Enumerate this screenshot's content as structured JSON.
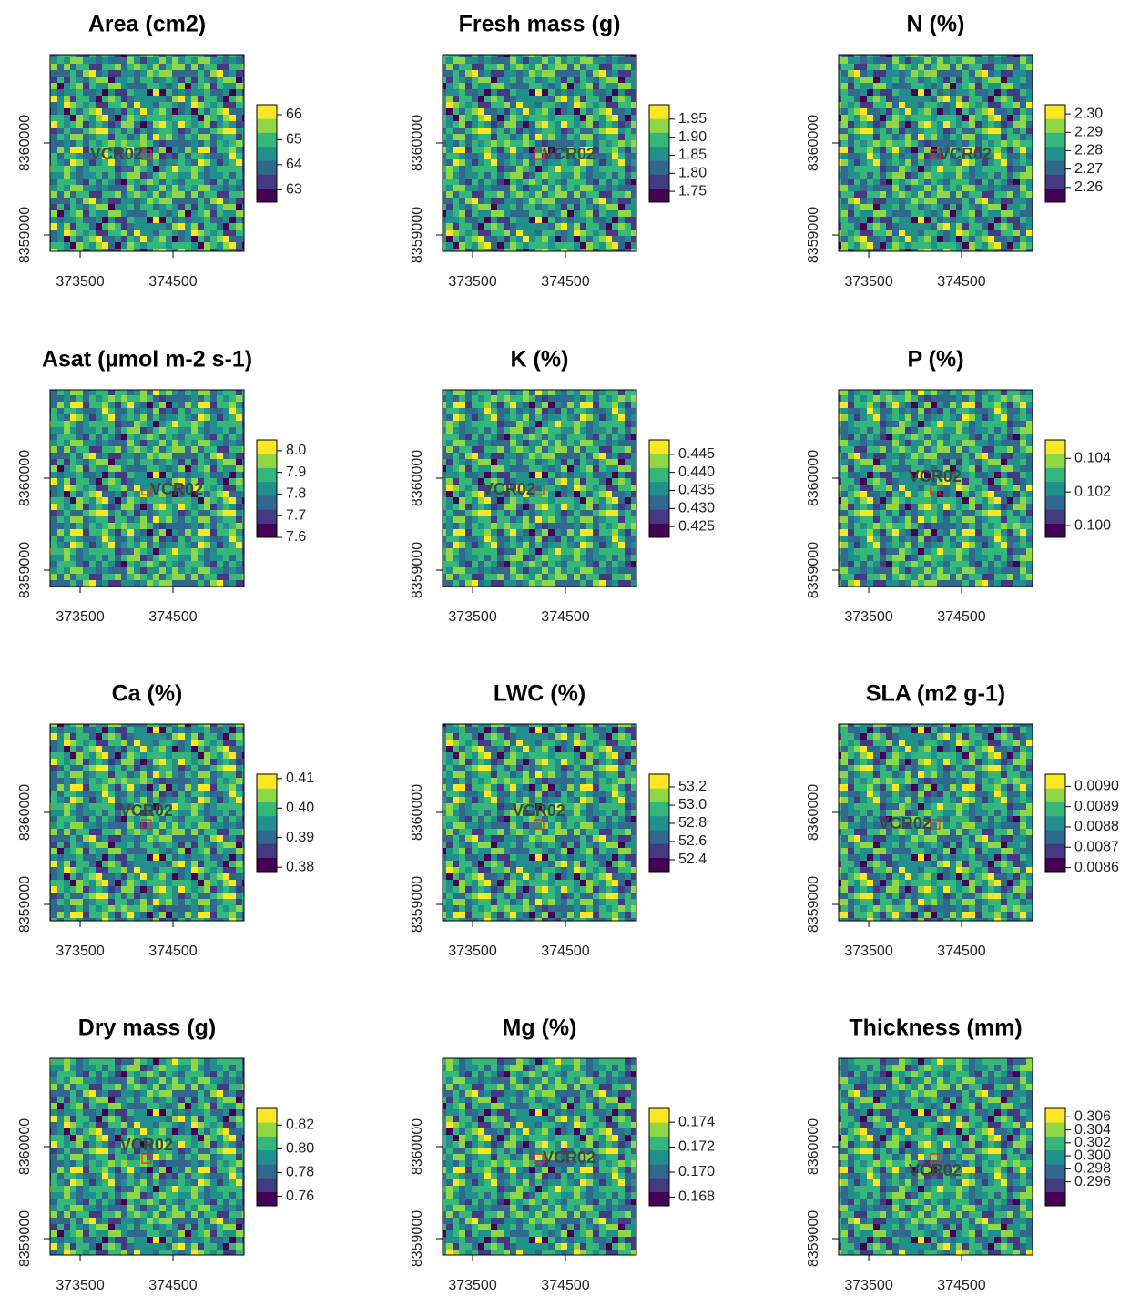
{
  "palette": [
    "#440154",
    "#443a83",
    "#31688e",
    "#21908c",
    "#35b779",
    "#8fd744",
    "#fde725"
  ],
  "chart_data": [
    {
      "type": "raster",
      "title": "Area (cm2)",
      "xlim": [
        373176,
        375265
      ],
      "ylim": [
        8358822,
        8360960
      ],
      "xticks": [
        373500,
        374500
      ],
      "yticks": [
        8359000,
        8360000
      ],
      "zlim": [
        62.5,
        66.4
      ],
      "zticks": [
        63,
        64,
        65,
        66
      ],
      "annotation": {
        "text": "VCR02",
        "x": 374215,
        "y": 8359870,
        "position": "left"
      }
    },
    {
      "type": "raster",
      "title": "Fresh mass (g)",
      "xlim": [
        373176,
        375265
      ],
      "ylim": [
        8358822,
        8360960
      ],
      "xticks": [
        373500,
        374500
      ],
      "yticks": [
        8359000,
        8360000
      ],
      "zlim": [
        1.72,
        1.99
      ],
      "zticks": [
        1.75,
        {
          "value": 1.8,
          "label": "1.80"
        },
        1.85,
        {
          "value": 1.9,
          "label": "1.90"
        },
        1.95
      ],
      "annotation": {
        "text": "VCR02",
        "x": 374215,
        "y": 8359870,
        "position": "right"
      }
    },
    {
      "type": "raster",
      "title": "N (%)",
      "xlim": [
        373176,
        375265
      ],
      "ylim": [
        8358822,
        8360960
      ],
      "xticks": [
        373500,
        374500
      ],
      "yticks": [
        8359000,
        8360000
      ],
      "zlim": [
        2.252,
        2.305
      ],
      "zticks": [
        2.26,
        2.27,
        2.28,
        2.29,
        {
          "value": 2.3,
          "label": "2.30"
        }
      ],
      "annotation": {
        "text": "VCR02",
        "x": 374215,
        "y": 8359870,
        "position": "right"
      }
    },
    {
      "type": "raster",
      "title": "Asat (µmol m-2 s-1)",
      "xlim": [
        373176,
        375265
      ],
      "ylim": [
        8358822,
        8360960
      ],
      "xticks": [
        373500,
        374500
      ],
      "yticks": [
        8359000,
        8360000
      ],
      "zlim": [
        7.6,
        8.05
      ],
      "zticks": [
        7.6,
        7.7,
        7.8,
        7.9,
        {
          "value": 8,
          "label": "8.0"
        }
      ],
      "annotation": {
        "text": "VCR02",
        "x": 374215,
        "y": 8359870,
        "position": "right"
      }
    },
    {
      "type": "raster",
      "title": "K (%)",
      "xlim": [
        373176,
        375265
      ],
      "ylim": [
        8358822,
        8360960
      ],
      "xticks": [
        373500,
        374500
      ],
      "yticks": [
        8359000,
        8360000
      ],
      "zlim": [
        0.422,
        0.449
      ],
      "zticks": [
        0.425,
        {
          "value": 0.43,
          "label": "0.430"
        },
        0.435,
        {
          "value": 0.44,
          "label": "0.440"
        },
        0.445
      ],
      "annotation": {
        "text": "VCR02",
        "x": 374215,
        "y": 8359870,
        "position": "left"
      }
    },
    {
      "type": "raster",
      "title": "P (%)",
      "xlim": [
        373176,
        375265
      ],
      "ylim": [
        8358822,
        8360960
      ],
      "xticks": [
        373500,
        374500
      ],
      "yticks": [
        8359000,
        8360000
      ],
      "zlim": [
        0.0993,
        0.1051
      ],
      "zticks": [
        {
          "value": 0.1,
          "label": "0.100"
        },
        0.102,
        0.104
      ],
      "annotation": {
        "text": "VCR02",
        "x": 374215,
        "y": 8359870,
        "position": "above"
      }
    },
    {
      "type": "raster",
      "title": "Ca (%)",
      "xlim": [
        373176,
        375265
      ],
      "ylim": [
        8358822,
        8360960
      ],
      "xticks": [
        373500,
        374500
      ],
      "yticks": [
        8359000,
        8360000
      ],
      "zlim": [
        0.3785,
        0.4115
      ],
      "zticks": [
        0.38,
        0.39,
        {
          "value": 0.4,
          "label": "0.40"
        },
        0.41
      ],
      "annotation": {
        "text": "VCR02",
        "x": 374215,
        "y": 8359870,
        "position": "above"
      }
    },
    {
      "type": "raster",
      "title": "LWC (%)",
      "xlim": [
        373176,
        375265
      ],
      "ylim": [
        8358822,
        8360960
      ],
      "xticks": [
        373500,
        374500
      ],
      "yticks": [
        8359000,
        8360000
      ],
      "zlim": [
        52.27,
        53.34
      ],
      "zticks": [
        52.4,
        52.6,
        52.8,
        {
          "value": 53,
          "label": "53.0"
        },
        53.2
      ],
      "annotation": {
        "text": "VCR02",
        "x": 374215,
        "y": 8359870,
        "position": "above"
      }
    },
    {
      "type": "raster",
      "title": "SLA (m2 g-1)",
      "xlim": [
        373176,
        375265
      ],
      "ylim": [
        8358822,
        8360960
      ],
      "xticks": [
        373500,
        374500
      ],
      "yticks": [
        8359000,
        8360000
      ],
      "zlim": [
        0.00858,
        0.00906
      ],
      "zticks": [
        0.0086,
        0.0087,
        0.0088,
        0.0089,
        {
          "value": 0.009,
          "label": "0.0090"
        }
      ],
      "annotation": {
        "text": "VCR02",
        "x": 374215,
        "y": 8359870,
        "position": "left"
      }
    },
    {
      "type": "raster",
      "title": "Dry mass (g)",
      "xlim": [
        373176,
        375265
      ],
      "ylim": [
        8358822,
        8360960
      ],
      "xticks": [
        373500,
        374500
      ],
      "yticks": [
        8359000,
        8360000
      ],
      "zlim": [
        0.752,
        0.834
      ],
      "zticks": [
        0.76,
        0.78,
        {
          "value": 0.8,
          "label": "0.80"
        },
        0.82
      ],
      "annotation": {
        "text": "VCR02",
        "x": 374215,
        "y": 8359870,
        "position": "above"
      }
    },
    {
      "type": "raster",
      "title": "Mg (%)",
      "xlim": [
        373176,
        375265
      ],
      "ylim": [
        8358822,
        8360960
      ],
      "xticks": [
        373500,
        374500
      ],
      "yticks": [
        8359000,
        8360000
      ],
      "zlim": [
        0.1673,
        0.1751
      ],
      "zticks": [
        0.168,
        {
          "value": 0.17,
          "label": "0.170"
        },
        0.172,
        0.174
      ],
      "annotation": {
        "text": "VCR02",
        "x": 374215,
        "y": 8359870,
        "position": "right"
      }
    },
    {
      "type": "raster",
      "title": "Thickness (mm)",
      "xlim": [
        373176,
        375265
      ],
      "ylim": [
        8358822,
        8360960
      ],
      "xticks": [
        373500,
        374500
      ],
      "yticks": [
        8359000,
        8360000
      ],
      "zlim": [
        0.2923,
        0.3073
      ],
      "zticks": [
        0.296,
        0.298,
        {
          "value": 0.3,
          "label": "0.300"
        },
        0.302,
        0.304,
        0.306
      ],
      "annotation": {
        "text": "VCR02",
        "x": 374215,
        "y": 8359870,
        "position": "below"
      }
    }
  ]
}
